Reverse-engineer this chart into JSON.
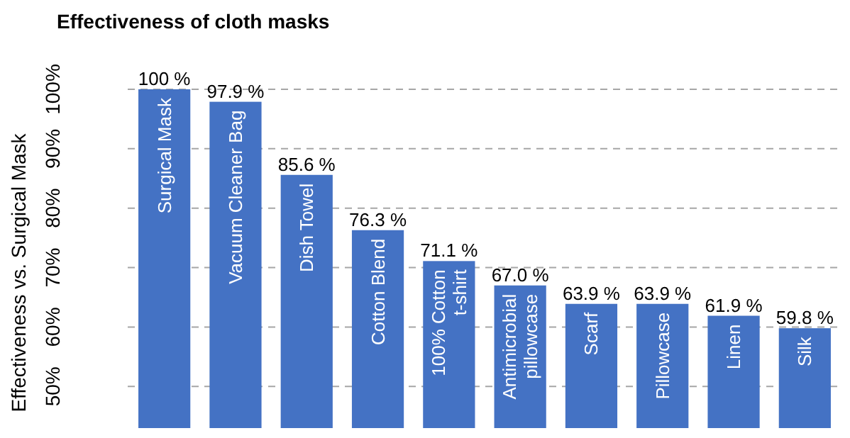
{
  "chart_data": {
    "type": "bar",
    "title": "Effectiveness of cloth masks",
    "ylabel": "Effectiveness vs. Surgical Mask",
    "categories": [
      "Surgical Mask",
      "Vacuum Cleaner Bag",
      "Dish Towel",
      "Cotton Blend",
      "100% Cotton\nt-shirt",
      "Antimicrobial\npillowcase",
      "Scarf",
      "Pillowcase",
      "Linen",
      "Silk"
    ],
    "values": [
      100,
      97.9,
      85.6,
      76.3,
      71.1,
      67.0,
      63.9,
      63.9,
      61.9,
      59.8
    ],
    "value_labels": [
      "100 %",
      "97.9 %",
      "85.6 %",
      "76.3 %",
      "71.1 %",
      "67.0 %",
      "63.9 %",
      "63.9 %",
      "61.9 %",
      "59.8 %"
    ],
    "color": "#4472c4",
    "ylim": [
      43,
      100
    ],
    "yticks": [
      {
        "value": 50,
        "label": "50%"
      },
      {
        "value": 60,
        "label": "60%"
      },
      {
        "value": 70,
        "label": "70%"
      },
      {
        "value": 80,
        "label": "80%"
      },
      {
        "value": 90,
        "label": "90%"
      },
      {
        "value": 100,
        "label": "100%"
      }
    ],
    "grid": "y"
  }
}
